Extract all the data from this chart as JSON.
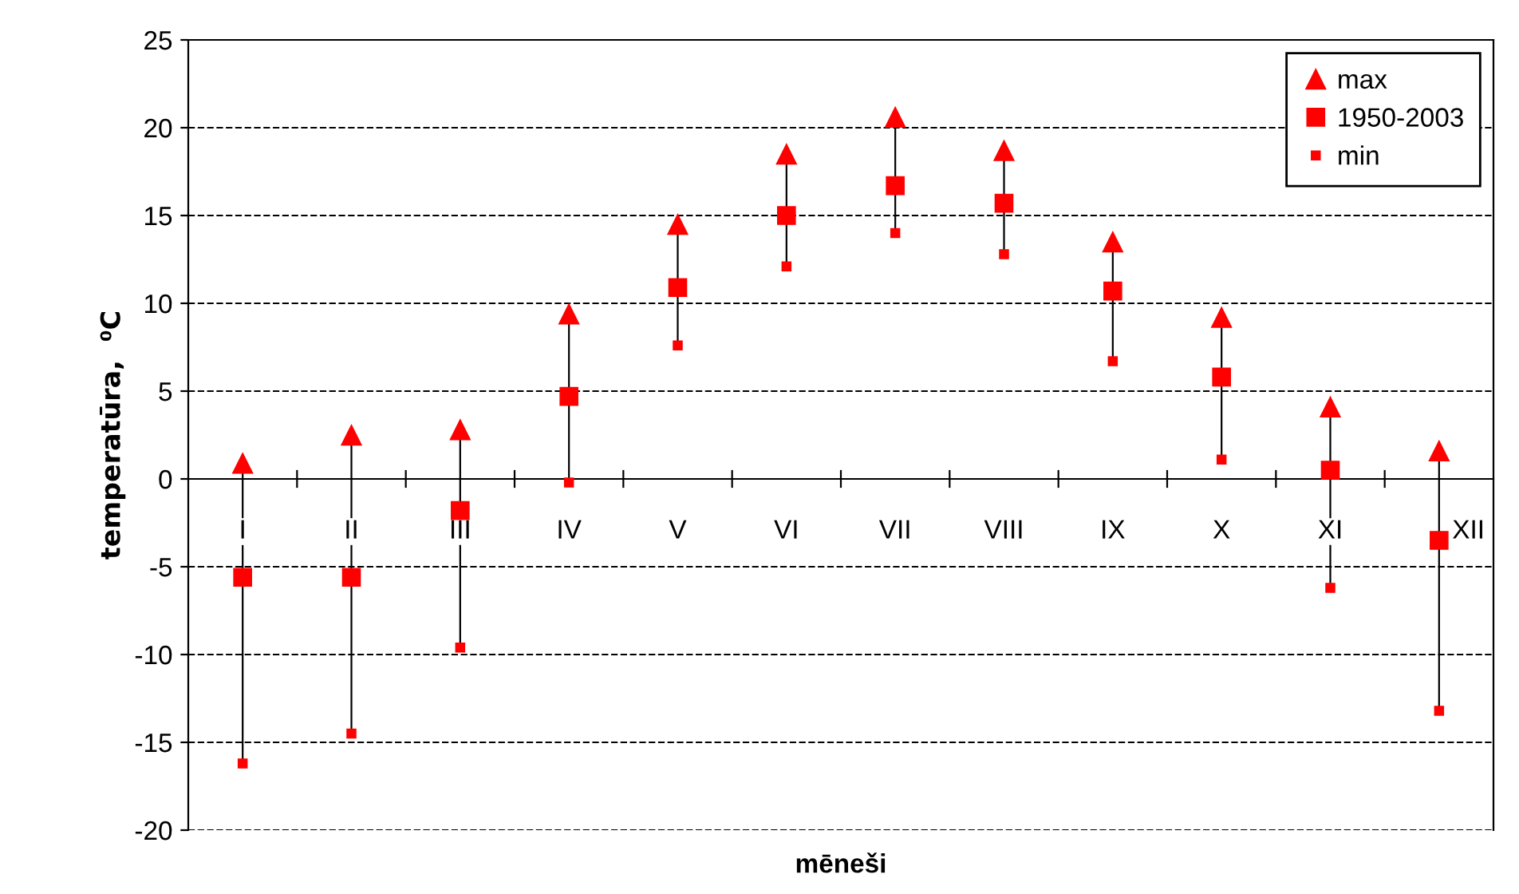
{
  "chart_data": {
    "type": "scatter",
    "xlabel": "mēneši",
    "ylabel": "temperatūra,  ⁰C",
    "categories": [
      "I",
      "II",
      "III",
      "IV",
      "V",
      "VI",
      "VII",
      "VIII",
      "IX",
      "X",
      "XI",
      "XII"
    ],
    "series": [
      {
        "name": "max",
        "color": "#ff0000",
        "marker": "triangle",
        "values": [
          0.9,
          2.5,
          2.8,
          9.4,
          14.5,
          18.5,
          20.6,
          18.7,
          13.5,
          9.2,
          4.1,
          1.6
        ]
      },
      {
        "name": "1950-2003",
        "color": "#ff0000",
        "marker": "square",
        "values": [
          -5.6,
          -5.6,
          -1.8,
          4.7,
          10.9,
          15.0,
          16.7,
          15.7,
          10.7,
          5.8,
          0.5,
          -3.5
        ]
      },
      {
        "name": "min",
        "color": "#ff0000",
        "marker": "square",
        "values": [
          -16.2,
          -14.5,
          -9.6,
          -0.2,
          7.6,
          12.1,
          14.0,
          12.8,
          6.7,
          1.1,
          -6.2,
          -13.2
        ]
      }
    ],
    "ylim": [
      -20,
      25
    ],
    "yticks": [
      -20,
      -15,
      -10,
      -5,
      0,
      5,
      10,
      15,
      20,
      25
    ],
    "grid": "y",
    "legend": "top right"
  }
}
